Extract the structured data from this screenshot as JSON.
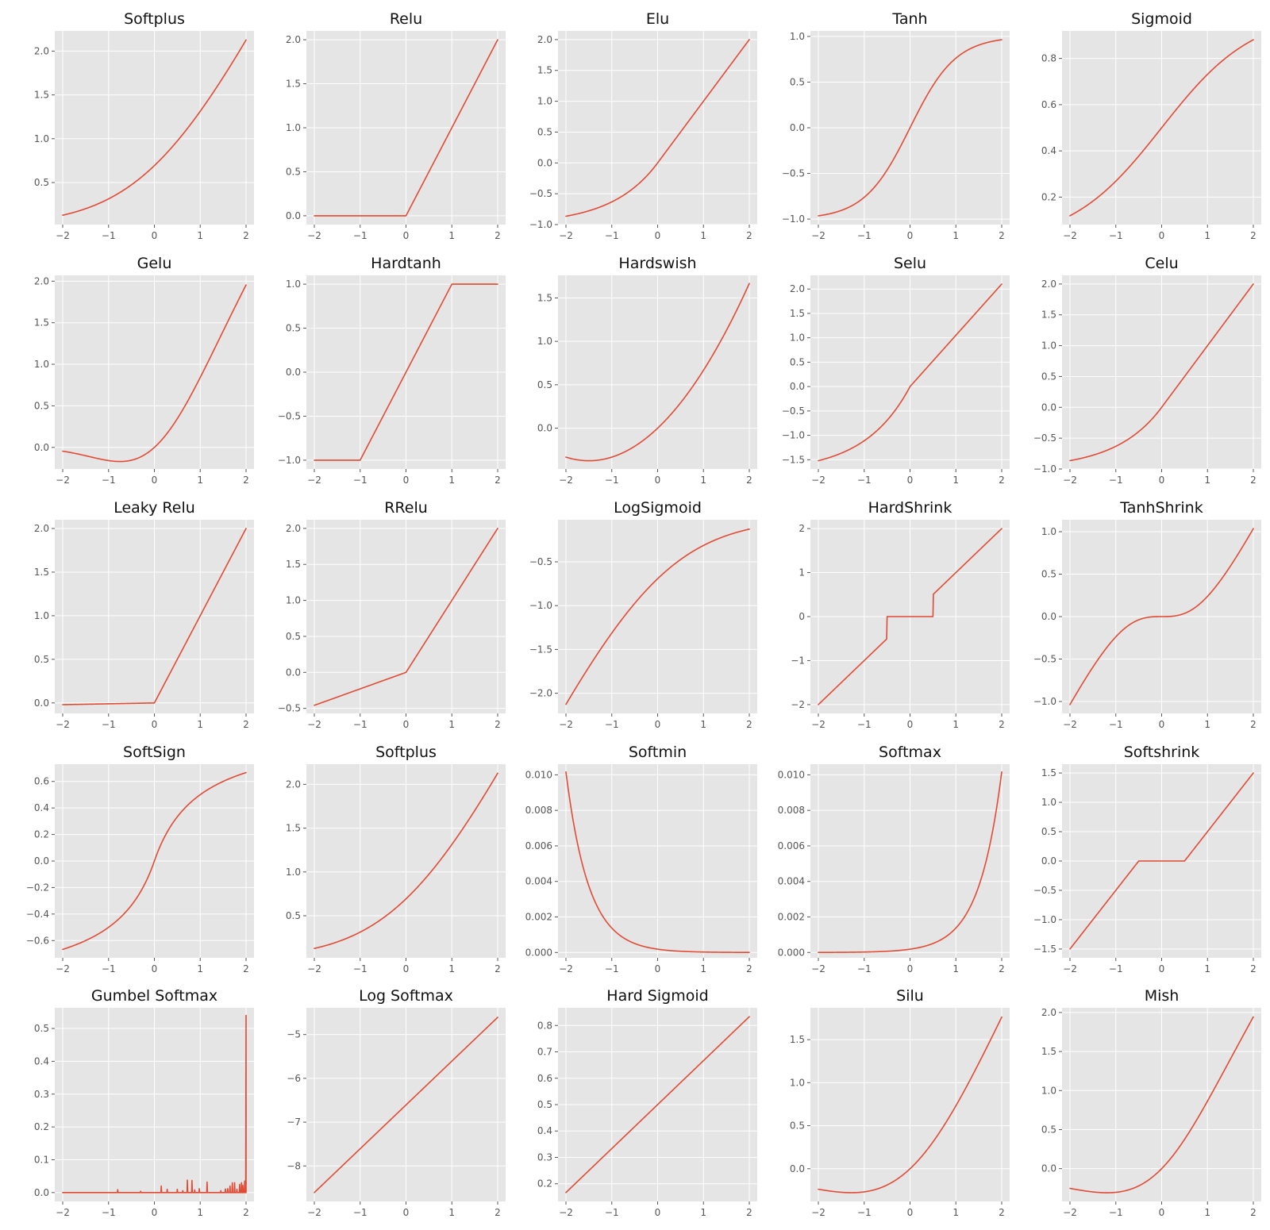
{
  "figure": {
    "style": "ggplot",
    "line_color": "#e24a33",
    "panel_background": "#e5e5e5",
    "grid_color": "#ffffff",
    "grid": true
  },
  "chart_data": [
    {
      "type": "line",
      "title": "Softplus",
      "fn": "softplus",
      "xlim": [
        -2,
        2
      ],
      "ylim": [
        0.02,
        2.23
      ],
      "xticks": [
        -2,
        -1,
        0,
        1,
        2
      ],
      "yticks": [
        0.5,
        1.0,
        1.5,
        2.0
      ],
      "xtick_labels": [
        "−2",
        "−1",
        "0",
        "1",
        "2"
      ],
      "ytick_labels": [
        "0.5",
        "1.0",
        "1.5",
        "2.0"
      ]
    },
    {
      "type": "line",
      "title": "Relu",
      "fn": "relu",
      "xlim": [
        -2,
        2
      ],
      "ylim": [
        -0.1,
        2.1
      ],
      "xticks": [
        -2,
        -1,
        0,
        1,
        2
      ],
      "yticks": [
        0.0,
        0.5,
        1.0,
        1.5,
        2.0
      ],
      "xtick_labels": [
        "−2",
        "−1",
        "0",
        "1",
        "2"
      ],
      "ytick_labels": [
        "0.0",
        "0.5",
        "1.0",
        "1.5",
        "2.0"
      ]
    },
    {
      "type": "line",
      "title": "Elu",
      "fn": "elu",
      "xlim": [
        -2,
        2
      ],
      "ylim": [
        -1.0,
        2.14
      ],
      "xticks": [
        -2,
        -1,
        0,
        1,
        2
      ],
      "yticks": [
        -1.0,
        -0.5,
        0.0,
        0.5,
        1.0,
        1.5,
        2.0
      ],
      "xtick_labels": [
        "−2",
        "−1",
        "0",
        "1",
        "2"
      ],
      "ytick_labels": [
        "−1.0",
        "−0.5",
        "0.0",
        "0.5",
        "1.0",
        "1.5",
        "2.0"
      ]
    },
    {
      "type": "line",
      "title": "Tanh",
      "fn": "tanh",
      "xlim": [
        -2,
        2
      ],
      "ylim": [
        -1.06,
        1.06
      ],
      "xticks": [
        -2,
        -1,
        0,
        1,
        2
      ],
      "yticks": [
        -1.0,
        -0.5,
        0.0,
        0.5,
        1.0
      ],
      "xtick_labels": [
        "−2",
        "−1",
        "0",
        "1",
        "2"
      ],
      "ytick_labels": [
        "−1.0",
        "−0.5",
        "0.0",
        "0.5",
        "1.0"
      ]
    },
    {
      "type": "line",
      "title": "Sigmoid",
      "fn": "sigmoid",
      "xlim": [
        -2,
        2
      ],
      "ylim": [
        0.081,
        0.919
      ],
      "xticks": [
        -2,
        -1,
        0,
        1,
        2
      ],
      "yticks": [
        0.2,
        0.4,
        0.6,
        0.8
      ],
      "xtick_labels": [
        "−2",
        "−1",
        "0",
        "1",
        "2"
      ],
      "ytick_labels": [
        "0.2",
        "0.4",
        "0.6",
        "0.8"
      ]
    },
    {
      "type": "line",
      "title": "Gelu",
      "fn": "gelu",
      "xlim": [
        -2,
        2
      ],
      "ylim": [
        -0.26,
        2.07
      ],
      "xticks": [
        -2,
        -1,
        0,
        1,
        2
      ],
      "yticks": [
        0.0,
        0.5,
        1.0,
        1.5,
        2.0
      ],
      "xtick_labels": [
        "−2",
        "−1",
        "0",
        "1",
        "2"
      ],
      "ytick_labels": [
        "0.0",
        "0.5",
        "1.0",
        "1.5",
        "2.0"
      ]
    },
    {
      "type": "line",
      "title": "Hardtanh",
      "fn": "hardtanh",
      "xlim": [
        -2,
        2
      ],
      "ylim": [
        -1.1,
        1.1
      ],
      "xticks": [
        -2,
        -1,
        0,
        1,
        2
      ],
      "yticks": [
        -1.0,
        -0.5,
        0.0,
        0.5,
        1.0
      ],
      "xtick_labels": [
        "−2",
        "−1",
        "0",
        "1",
        "2"
      ],
      "ytick_labels": [
        "−1.0",
        "−0.5",
        "0.0",
        "0.5",
        "1.0"
      ]
    },
    {
      "type": "line",
      "title": "Hardswish",
      "fn": "hardswish",
      "xlim": [
        -2,
        2
      ],
      "ylim": [
        -0.47,
        1.76
      ],
      "xticks": [
        -2,
        -1,
        0,
        1,
        2
      ],
      "yticks": [
        0.0,
        0.5,
        1.0,
        1.5
      ],
      "xtick_labels": [
        "−2",
        "−1",
        "0",
        "1",
        "2"
      ],
      "ytick_labels": [
        "0.0",
        "0.5",
        "1.0",
        "1.5"
      ]
    },
    {
      "type": "line",
      "title": "Selu",
      "fn": "selu",
      "xlim": [
        -2,
        2
      ],
      "ylim": [
        -1.69,
        2.28
      ],
      "xticks": [
        -2,
        -1,
        0,
        1,
        2
      ],
      "yticks": [
        -1.5,
        -1.0,
        -0.5,
        0.0,
        0.5,
        1.0,
        1.5,
        2.0
      ],
      "xtick_labels": [
        "−2",
        "−1",
        "0",
        "1",
        "2"
      ],
      "ytick_labels": [
        "−1.5",
        "−1.0",
        "−0.5",
        "0.0",
        "0.5",
        "1.0",
        "1.5",
        "2.0"
      ]
    },
    {
      "type": "line",
      "title": "Celu",
      "fn": "elu",
      "xlim": [
        -2,
        2
      ],
      "ylim": [
        -1.0,
        2.14
      ],
      "xticks": [
        -2,
        -1,
        0,
        1,
        2
      ],
      "yticks": [
        -1.0,
        -0.5,
        0.0,
        0.5,
        1.0,
        1.5,
        2.0
      ],
      "xtick_labels": [
        "−2",
        "−1",
        "0",
        "1",
        "2"
      ],
      "ytick_labels": [
        "−1.0",
        "−0.5",
        "0.0",
        "0.5",
        "1.0",
        "1.5",
        "2.0"
      ]
    },
    {
      "type": "line",
      "title": "Leaky Relu",
      "fn": "leaky_relu",
      "xlim": [
        -2,
        2
      ],
      "ylim": [
        -0.12,
        2.1
      ],
      "xticks": [
        -2,
        -1,
        0,
        1,
        2
      ],
      "yticks": [
        0.0,
        0.5,
        1.0,
        1.5,
        2.0
      ],
      "xtick_labels": [
        "−2",
        "−1",
        "0",
        "1",
        "2"
      ],
      "ytick_labels": [
        "0.0",
        "0.5",
        "1.0",
        "1.5",
        "2.0"
      ]
    },
    {
      "type": "line",
      "title": "RRelu",
      "fn": "rrelu",
      "xlim": [
        -2,
        2
      ],
      "ylim": [
        -0.57,
        2.12
      ],
      "xticks": [
        -2,
        -1,
        0,
        1,
        2
      ],
      "yticks": [
        -0.5,
        0.0,
        0.5,
        1.0,
        1.5,
        2.0
      ],
      "xtick_labels": [
        "−2",
        "−1",
        "0",
        "1",
        "2"
      ],
      "ytick_labels": [
        "−0.5",
        "0.0",
        "0.5",
        "1.0",
        "1.5",
        "2.0"
      ]
    },
    {
      "type": "line",
      "title": "LogSigmoid",
      "fn": "logsigmoid",
      "xlim": [
        -2,
        2
      ],
      "ylim": [
        -2.23,
        -0.02
      ],
      "xticks": [
        -2,
        -1,
        0,
        1,
        2
      ],
      "yticks": [
        -2.0,
        -1.5,
        -1.0,
        -0.5
      ],
      "xtick_labels": [
        "−2",
        "−1",
        "0",
        "1",
        "2"
      ],
      "ytick_labels": [
        "−2.0",
        "−1.5",
        "−1.0",
        "−0.5"
      ]
    },
    {
      "type": "line",
      "title": "HardShrink",
      "fn": "hardshrink",
      "xlim": [
        -2,
        2
      ],
      "ylim": [
        -2.2,
        2.2
      ],
      "xticks": [
        -2,
        -1,
        0,
        1,
        2
      ],
      "yticks": [
        -2,
        -1,
        0,
        1,
        2
      ],
      "xtick_labels": [
        "−2",
        "−1",
        "0",
        "1",
        "2"
      ],
      "ytick_labels": [
        "−2",
        "−1",
        "0",
        "1",
        "2"
      ]
    },
    {
      "type": "line",
      "title": "TanhShrink",
      "fn": "tanhshrink",
      "xlim": [
        -2,
        2
      ],
      "ylim": [
        -1.14,
        1.14
      ],
      "xticks": [
        -2,
        -1,
        0,
        1,
        2
      ],
      "yticks": [
        -1.0,
        -0.5,
        0.0,
        0.5,
        1.0
      ],
      "xtick_labels": [
        "−2",
        "−1",
        "0",
        "1",
        "2"
      ],
      "ytick_labels": [
        "−1.0",
        "−0.5",
        "0.0",
        "0.5",
        "1.0"
      ]
    },
    {
      "type": "line",
      "title": "SoftSign",
      "fn": "softsign",
      "xlim": [
        -2,
        2
      ],
      "ylim": [
        -0.73,
        0.73
      ],
      "xticks": [
        -2,
        -1,
        0,
        1,
        2
      ],
      "yticks": [
        -0.6,
        -0.4,
        -0.2,
        0.0,
        0.2,
        0.4,
        0.6
      ],
      "xtick_labels": [
        "−2",
        "−1",
        "0",
        "1",
        "2"
      ],
      "ytick_labels": [
        "−0.6",
        "−0.4",
        "−0.2",
        "0.0",
        "0.2",
        "0.4",
        "0.6"
      ]
    },
    {
      "type": "line",
      "title": "Softplus",
      "fn": "softplus",
      "xlim": [
        -2,
        2
      ],
      "ylim": [
        0.02,
        2.23
      ],
      "xticks": [
        -2,
        -1,
        0,
        1,
        2
      ],
      "yticks": [
        0.5,
        1.0,
        1.5,
        2.0
      ],
      "xtick_labels": [
        "−2",
        "−1",
        "0",
        "1",
        "2"
      ],
      "ytick_labels": [
        "0.5",
        "1.0",
        "1.5",
        "2.0"
      ]
    },
    {
      "type": "line",
      "title": "Softmin",
      "fn": "softmin",
      "xlim": [
        -2,
        2
      ],
      "ylim": [
        -0.0003,
        0.0106
      ],
      "xticks": [
        -2,
        -1,
        0,
        1,
        2
      ],
      "yticks": [
        0.0,
        0.002,
        0.004,
        0.006,
        0.008,
        0.01
      ],
      "xtick_labels": [
        "−2",
        "−1",
        "0",
        "1",
        "2"
      ],
      "ytick_labels": [
        "0.000",
        "0.002",
        "0.004",
        "0.006",
        "0.008",
        "0.010"
      ]
    },
    {
      "type": "line",
      "title": "Softmax",
      "fn": "softmax",
      "xlim": [
        -2,
        2
      ],
      "ylim": [
        -0.0003,
        0.0106
      ],
      "xticks": [
        -2,
        -1,
        0,
        1,
        2
      ],
      "yticks": [
        0.0,
        0.002,
        0.004,
        0.006,
        0.008,
        0.01
      ],
      "xtick_labels": [
        "−2",
        "−1",
        "0",
        "1",
        "2"
      ],
      "ytick_labels": [
        "0.000",
        "0.002",
        "0.004",
        "0.006",
        "0.008",
        "0.010"
      ]
    },
    {
      "type": "line",
      "title": "Softshrink",
      "fn": "softshrink",
      "xlim": [
        -2,
        2
      ],
      "ylim": [
        -1.65,
        1.65
      ],
      "xticks": [
        -2,
        -1,
        0,
        1,
        2
      ],
      "yticks": [
        -1.5,
        -1.0,
        -0.5,
        0.0,
        0.5,
        1.0,
        1.5
      ],
      "xtick_labels": [
        "−2",
        "−1",
        "0",
        "1",
        "2"
      ],
      "ytick_labels": [
        "−1.5",
        "−1.0",
        "−0.5",
        "0.0",
        "0.5",
        "1.0",
        "1.5"
      ]
    },
    {
      "type": "line",
      "title": "Gumbel Softmax",
      "fn": "gumbel",
      "xlim": [
        -2,
        2
      ],
      "ylim": [
        -0.027,
        0.563
      ],
      "xticks": [
        -2,
        -1,
        0,
        1,
        2
      ],
      "yticks": [
        0.0,
        0.1,
        0.2,
        0.3,
        0.4,
        0.5
      ],
      "xtick_labels": [
        "−2",
        "−1",
        "0",
        "1",
        "2"
      ],
      "ytick_labels": [
        "0.0",
        "0.1",
        "0.2",
        "0.3",
        "0.4",
        "0.5"
      ],
      "spikes": [
        [
          -0.8,
          0.009
        ],
        [
          -0.3,
          0.004
        ],
        [
          0.15,
          0.02
        ],
        [
          0.28,
          0.01
        ],
        [
          0.5,
          0.01
        ],
        [
          0.62,
          0.006
        ],
        [
          0.72,
          0.038
        ],
        [
          0.82,
          0.037
        ],
        [
          0.88,
          0.008
        ],
        [
          0.98,
          0.012
        ],
        [
          1.15,
          0.032
        ],
        [
          1.45,
          0.006
        ],
        [
          1.55,
          0.011
        ],
        [
          1.6,
          0.012
        ],
        [
          1.65,
          0.02
        ],
        [
          1.7,
          0.03
        ],
        [
          1.75,
          0.03
        ],
        [
          1.8,
          0.01
        ],
        [
          1.86,
          0.025
        ],
        [
          1.9,
          0.03
        ],
        [
          1.93,
          0.022
        ],
        [
          1.97,
          0.035
        ],
        [
          2.0,
          0.54
        ]
      ]
    },
    {
      "type": "line",
      "title": "Log Softmax",
      "fn": "logsoftmax",
      "xlim": [
        -2,
        2
      ],
      "ylim": [
        -8.81,
        -4.39
      ],
      "xticks": [
        -2,
        -1,
        0,
        1,
        2
      ],
      "yticks": [
        -8,
        -7,
        -6,
        -5
      ],
      "xtick_labels": [
        "−2",
        "−1",
        "0",
        "1",
        "2"
      ],
      "ytick_labels": [
        "−8",
        "−7",
        "−6",
        "−5"
      ]
    },
    {
      "type": "line",
      "title": "Hard Sigmoid",
      "fn": "hardsigmoid",
      "xlim": [
        -2,
        2
      ],
      "ylim": [
        0.133,
        0.867
      ],
      "xticks": [
        -2,
        -1,
        0,
        1,
        2
      ],
      "yticks": [
        0.2,
        0.3,
        0.4,
        0.5,
        0.6,
        0.7,
        0.8
      ],
      "xtick_labels": [
        "−2",
        "−1",
        "0",
        "1",
        "2"
      ],
      "ytick_labels": [
        "0.2",
        "0.3",
        "0.4",
        "0.5",
        "0.6",
        "0.7",
        "0.8"
      ]
    },
    {
      "type": "line",
      "title": "Silu",
      "fn": "silu",
      "xlim": [
        -2,
        2
      ],
      "ylim": [
        -0.38,
        1.87
      ],
      "xticks": [
        -2,
        -1,
        0,
        1,
        2
      ],
      "yticks": [
        0.0,
        0.5,
        1.0,
        1.5
      ],
      "xtick_labels": [
        "−2",
        "−1",
        "0",
        "1",
        "2"
      ],
      "ytick_labels": [
        "0.0",
        "0.5",
        "1.0",
        "1.5"
      ]
    },
    {
      "type": "line",
      "title": "Mish",
      "fn": "mish",
      "xlim": [
        -2,
        2
      ],
      "ylim": [
        -0.42,
        2.06
      ],
      "xticks": [
        -2,
        -1,
        0,
        1,
        2
      ],
      "yticks": [
        0.0,
        0.5,
        1.0,
        1.5,
        2.0
      ],
      "xtick_labels": [
        "−2",
        "−1",
        "0",
        "1",
        "2"
      ],
      "ytick_labels": [
        "0.0",
        "0.5",
        "1.0",
        "1.5",
        "2.0"
      ]
    }
  ]
}
